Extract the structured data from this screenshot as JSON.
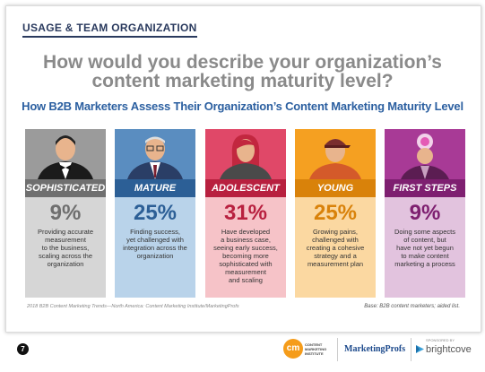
{
  "section_title": "USAGE & TEAM ORGANIZATION",
  "question_line1": "How would you describe your organization’s",
  "question_line2": "content marketing maturity level?",
  "subtitle": "How B2B Marketers Assess Their Organization’s Content Marketing Maturity Level",
  "chart_data": {
    "type": "bar",
    "title": "How B2B Marketers Assess Their Organization’s Content Marketing Maturity Level",
    "categories": [
      "SOPHISTICATED",
      "MATURE",
      "ADOLESCENT",
      "YOUNG",
      "FIRST STEPS"
    ],
    "values": [
      9,
      25,
      31,
      25,
      9
    ],
    "labels": [
      "9%",
      "25%",
      "31%",
      "25%",
      "9%"
    ],
    "descriptions": [
      [
        "Providing accurate",
        "measurement",
        "to the business,",
        "scaling across the",
        "organization"
      ],
      [
        "Finding success,",
        "yet challenged with",
        "integration across the",
        "organization"
      ],
      [
        "Have developed",
        "a business case,",
        "seeing early success,",
        "becoming more",
        "sophisticated with",
        "measurement",
        "and scaling"
      ],
      [
        "Growing pains,",
        "challenged with",
        "creating a cohesive",
        "strategy and a",
        "measurement plan"
      ],
      [
        "Doing some aspects",
        "of content, but",
        "have not yet begun",
        "to make content",
        "marketing a process"
      ]
    ],
    "colors": {
      "top": [
        "#9b9b9b",
        "#5a8dc0",
        "#e04868",
        "#f5a021",
        "#a83a96"
      ],
      "label": [
        "#6f6f6f",
        "#2c5f96",
        "#b8203f",
        "#d9820a",
        "#7e1f70"
      ],
      "bottom": [
        "#d6d6d6",
        "#b9d3ea",
        "#f6c3c8",
        "#fbd8a1",
        "#e2c3de"
      ],
      "pct": [
        "#6f6f6f",
        "#2c5f96",
        "#b8203f",
        "#d9820a",
        "#7e1f70"
      ]
    }
  },
  "footnote": "2018 B2B Content Marketing Trends—North America: Content Marketing Institute/MarketingProfs",
  "base_note": "Base: B2B content marketers; aided list.",
  "page_number": "7",
  "logos": {
    "cmi_mark": "cm",
    "cmi_text": "CONTENT MARKETING INSTITUTE",
    "marketingprofs": "MarketingProfs",
    "sponsor": "SPONSORED BY",
    "brightcove": "brightcove"
  }
}
